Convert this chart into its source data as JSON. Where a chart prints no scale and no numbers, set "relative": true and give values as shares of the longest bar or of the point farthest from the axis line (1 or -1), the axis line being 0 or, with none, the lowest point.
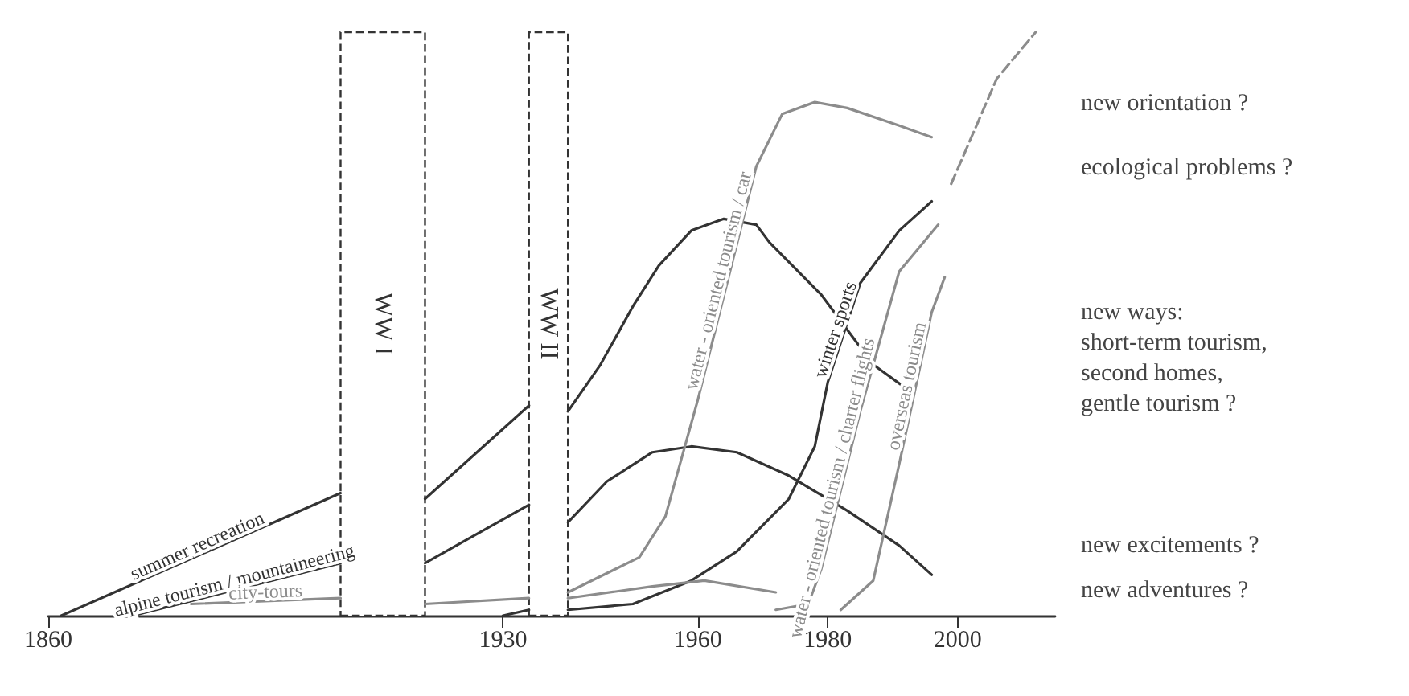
{
  "chart_data": {
    "type": "line",
    "relative": true,
    "xlim": [
      1860,
      2015
    ],
    "xticks": [
      1860,
      1930,
      1960,
      1980,
      2000
    ],
    "grid": false,
    "legend": false,
    "marker": "none",
    "bands": [
      {
        "axis": "x",
        "from": 1905,
        "to": 1918,
        "label": "WW I"
      },
      {
        "axis": "x",
        "from": 1934,
        "to": 1940,
        "label": "WW II"
      }
    ],
    "series": [
      {
        "name": "summer recreation",
        "color": "#333333",
        "x": [
          1862,
          1905,
          null,
          1918,
          1934,
          null,
          1940,
          1945,
          1950,
          1954,
          1959,
          1964,
          1969,
          1971,
          1979,
          1987,
          1992
        ],
        "values": [
          0,
          0.21,
          null,
          0.2,
          0.36,
          null,
          0.35,
          0.43,
          0.53,
          0.6,
          0.66,
          0.68,
          0.67,
          0.64,
          0.55,
          0.43,
          0.39
        ]
      },
      {
        "name": "alpine tourism / mountaineering",
        "color": "#333333",
        "x": [
          1873,
          1905,
          null,
          1918,
          1934,
          null,
          1940,
          1946,
          1953,
          1959,
          1966,
          1974,
          1983,
          1991,
          1996
        ],
        "values": [
          0,
          0.09,
          null,
          0.09,
          0.19,
          null,
          0.16,
          0.23,
          0.28,
          0.29,
          0.28,
          0.24,
          0.18,
          0.12,
          0.07
        ]
      },
      {
        "name": "winter sports",
        "color": "#333333",
        "x": [
          1930,
          1934,
          null,
          1940,
          1950,
          1959,
          1966,
          1974,
          1978,
          1980,
          1985,
          1991,
          1996
        ],
        "values": [
          0,
          0.01,
          null,
          0.01,
          0.02,
          0.06,
          0.11,
          0.2,
          0.29,
          0.4,
          0.57,
          0.66,
          0.71
        ]
      },
      {
        "name": "city-tours",
        "color": "#8c8c8c",
        "x": [
          1882,
          1905,
          null,
          1918,
          1934,
          null,
          1940,
          1953,
          1961,
          1972
        ],
        "values": [
          0.02,
          0.03,
          null,
          0.02,
          0.03,
          null,
          0.03,
          0.05,
          0.06,
          0.04
        ]
      },
      {
        "name": "water - oriented tourism / car",
        "color": "#8c8c8c",
        "x": [
          1940,
          1951,
          1955,
          1960,
          1969,
          1973,
          1978,
          1983,
          1991,
          1996
        ],
        "values": [
          0.04,
          0.1,
          0.17,
          0.37,
          0.77,
          0.86,
          0.88,
          0.87,
          0.84,
          0.82
        ]
      },
      {
        "name": "water - oriented tourism / charter flights",
        "color": "#8c8c8c",
        "x": [
          1972,
          1977,
          1979,
          1985,
          1991,
          1997
        ],
        "values": [
          0.01,
          0.02,
          0.08,
          0.35,
          0.59,
          0.67
        ]
      },
      {
        "name": "overseas tourism",
        "color": "#8c8c8c",
        "x": [
          1982,
          1987,
          1991,
          1996,
          1998
        ],
        "values": [
          0.01,
          0.06,
          0.26,
          0.52,
          0.58
        ]
      },
      {
        "color": "#8c8c8c",
        "line_style": "dashed",
        "x": [
          1999,
          2006,
          2012
        ],
        "values": [
          0.74,
          0.92,
          1
        ]
      }
    ],
    "annotations": [
      "new orientation ?",
      "ecological problems ?",
      "new ways:\nshort-term tourism,\nsecond homes,\ngentle tourism ?",
      "new excitements ?",
      "new adventures ?"
    ]
  }
}
